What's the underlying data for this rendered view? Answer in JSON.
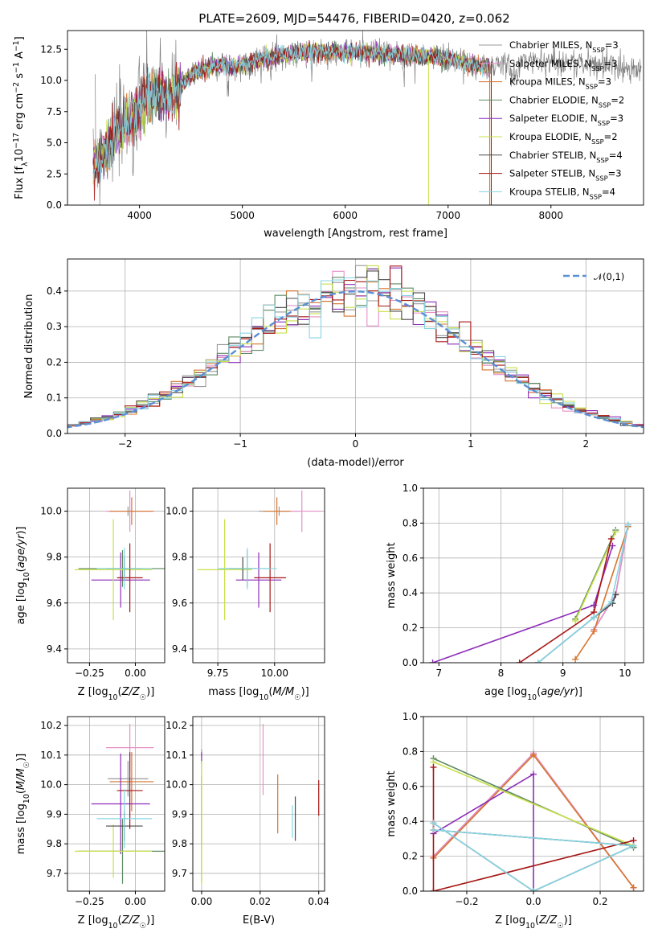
{
  "figure": {
    "title": "PLATE=2609, MJD=54476, FIBERID=0420, z=0.062"
  },
  "legend_entries": [
    {
      "name": "Chabrier MILES, N_SSP=3",
      "color": "#999999"
    },
    {
      "name": "Salpeter MILES, N_SSP=3",
      "color": "#e58fc6"
    },
    {
      "name": "Kroupa MILES, N_SSP=3",
      "color": "#d6742f"
    },
    {
      "name": "Chabrier ELODIE, N_SSP=2",
      "color": "#5e8b62"
    },
    {
      "name": "Salpeter ELODIE, N_SSP=3",
      "color": "#8e2eb8"
    },
    {
      "name": "Kroupa ELODIE, N_SSP=2",
      "color": "#c9e04a"
    },
    {
      "name": "Chabrier STELIB, N_SSP=4",
      "color": "#4a4a4a"
    },
    {
      "name": "Salpeter STELIB, N_SSP=3",
      "color": "#a71616"
    },
    {
      "name": "Kroupa STELIB, N_SSP=4",
      "color": "#86d5e3"
    }
  ],
  "chart_data": [
    {
      "id": "spectrum",
      "type": "line",
      "xlabel": "wavelength [Angstrom, rest frame]",
      "ylabel": "Flux [f_λ 10^-17 erg cm^-2 s^-1 A^-1]",
      "xlim": [
        3300,
        8900
      ],
      "ylim": [
        0,
        14
      ],
      "xticks": [
        4000,
        5000,
        6000,
        7000,
        8000
      ],
      "yticks": [
        0.0,
        2.5,
        5.0,
        7.5,
        10.0,
        12.5
      ],
      "ytick_labels": [
        "0.0",
        "2.5",
        "5.0",
        "7.5",
        "10.0",
        "12.5"
      ],
      "grid": false,
      "legend_position": "top-right",
      "continuum": {
        "x": [
          3600,
          3700,
          3800,
          3900,
          4000,
          4100,
          4200,
          4300,
          4400,
          4500,
          4600,
          4700,
          4800,
          4900,
          5000,
          5200,
          5400,
          5600,
          5800,
          6000,
          6200,
          6400,
          6600,
          6800,
          7000,
          7200,
          7400,
          7600,
          7800,
          8000,
          8200,
          8400,
          8600,
          8800
        ],
        "y": [
          3.5,
          4.8,
          6.0,
          6.8,
          8.0,
          8.8,
          9.0,
          8.6,
          9.5,
          10.4,
          10.8,
          11.1,
          11.2,
          11.0,
          11.2,
          11.8,
          12.1,
          12.2,
          12.3,
          12.2,
          12.3,
          12.1,
          12.0,
          11.9,
          11.8,
          11.3,
          11.0,
          11.5,
          11.6,
          11.5,
          11.4,
          11.3,
          11.2,
          11.0
        ]
      },
      "model_range": [
        3550,
        7400
      ]
    },
    {
      "id": "residuals",
      "type": "histogram",
      "xlabel": "(data-model)/error",
      "ylabel": "Normed distribution",
      "xlim": [
        -2.5,
        2.5
      ],
      "ylim": [
        0,
        0.49
      ],
      "xticks": [
        -2,
        -1,
        0,
        1,
        2
      ],
      "xtick_labels": [
        "−2",
        "−1",
        "0",
        "1",
        "2"
      ],
      "yticks": [
        0.0,
        0.1,
        0.2,
        0.3,
        0.4
      ],
      "ytick_labels": [
        "0.0",
        "0.1",
        "0.2",
        "0.3",
        "0.4"
      ],
      "grid": true,
      "bin_width": 0.1,
      "reference_curve": {
        "name": "𝒩(0,1)",
        "type": "gaussian",
        "mean": 0,
        "sigma": 1,
        "color": "#5b8fd6"
      },
      "legend_position": "top-right"
    },
    {
      "id": "age_vs_Z",
      "type": "errorbar",
      "xlabel": "Z [log10(Z/Z☉)]",
      "ylabel": "age  [log10(age/yr)]",
      "xlim": [
        -0.37,
        0.16
      ],
      "ylim": [
        9.34,
        10.1
      ],
      "xticks": [
        -0.25,
        0.0
      ],
      "xtick_labels": [
        "−0.25",
        "0.00"
      ],
      "yticks": [
        9.4,
        9.6,
        9.8,
        10.0
      ],
      "ytick_labels": [
        "9.4",
        "9.6",
        "9.8",
        "10.0"
      ],
      "grid": true,
      "points": [
        {
          "series": 0,
          "x": -0.04,
          "y": 10.0,
          "xerr": 0.11,
          "yerr": 0.02
        },
        {
          "series": 1,
          "x": -0.03,
          "y": 10.0,
          "xerr": 0.13,
          "yerr": 0.09
        },
        {
          "series": 2,
          "x": -0.02,
          "y": 10.0,
          "xerr": 0.12,
          "yerr": 0.06
        },
        {
          "series": 3,
          "x": -0.07,
          "y": 9.75,
          "xerr": 0.24,
          "yerr": 0.08
        },
        {
          "series": 4,
          "x": -0.08,
          "y": 9.7,
          "xerr": 0.16,
          "yerr": 0.12
        },
        {
          "series": 5,
          "x": -0.12,
          "y": 9.745,
          "xerr": 0.21,
          "yerr": 0.22
        },
        {
          "series": 6,
          "x": -0.06,
          "y": 9.75,
          "xerr": 0.1,
          "yerr": 0.05
        },
        {
          "series": 7,
          "x": -0.03,
          "y": 9.71,
          "xerr": 0.07,
          "yerr": 0.15
        },
        {
          "series": 8,
          "x": -0.06,
          "y": 9.75,
          "xerr": 0.15,
          "yerr": 0.09
        }
      ]
    },
    {
      "id": "age_vs_mass",
      "type": "errorbar",
      "xlabel": "mass [log10(M/M☉)]",
      "ylabel": "",
      "xlim": [
        9.64,
        10.22
      ],
      "ylim": [
        9.34,
        10.1
      ],
      "xticks": [
        9.75,
        10.0
      ],
      "xtick_labels": [
        "9.75",
        "10.00"
      ],
      "yticks": [
        9.4,
        9.6,
        9.8,
        10.0
      ],
      "ytick_labels": [
        "9.4",
        "9.6",
        "9.8",
        "10.0"
      ],
      "grid": true,
      "points": [
        {
          "series": 0,
          "x": 10.02,
          "y": 10.0,
          "xerr": 0.09,
          "yerr": 0.02
        },
        {
          "series": 1,
          "x": 10.12,
          "y": 10.0,
          "xerr": 0.09,
          "yerr": 0.09
        },
        {
          "series": 2,
          "x": 10.01,
          "y": 10.0,
          "xerr": 0.06,
          "yerr": 0.06
        },
        {
          "series": 3,
          "x": 9.88,
          "y": 9.75,
          "xerr": 0.11,
          "yerr": 0.08
        },
        {
          "series": 4,
          "x": 9.93,
          "y": 9.7,
          "xerr": 0.1,
          "yerr": 0.12
        },
        {
          "series": 5,
          "x": 9.78,
          "y": 9.745,
          "xerr": 0.12,
          "yerr": 0.22
        },
        {
          "series": 6,
          "x": 9.86,
          "y": 9.75,
          "xerr": 0.06,
          "yerr": 0.05
        },
        {
          "series": 7,
          "x": 9.98,
          "y": 9.71,
          "xerr": 0.07,
          "yerr": 0.15
        },
        {
          "series": 8,
          "x": 9.88,
          "y": 9.75,
          "xerr": 0.13,
          "yerr": 0.09
        }
      ]
    },
    {
      "id": "mw_vs_age",
      "type": "line",
      "xlabel": "age  [log10(age/yr)]",
      "ylabel": "mass weight",
      "xlim": [
        6.75,
        10.3
      ],
      "ylim": [
        0,
        1
      ],
      "xticks": [
        7,
        8,
        9,
        10
      ],
      "yticks": [
        0.0,
        0.2,
        0.4,
        0.6,
        0.8,
        1.0
      ],
      "ytick_labels": [
        "0.0",
        "0.2",
        "0.4",
        "0.6",
        "0.8",
        "1.0"
      ],
      "grid": true,
      "series": [
        {
          "series": 0,
          "x": [
            9.5,
            9.85,
            10.05
          ],
          "y": [
            0.19,
            0.39,
            0.79
          ]
        },
        {
          "series": 1,
          "x": [
            9.5,
            9.85,
            10.05
          ],
          "y": [
            0.19,
            0.39,
            0.79
          ]
        },
        {
          "series": 2,
          "x": [
            9.2,
            9.5,
            10.05
          ],
          "y": [
            0.02,
            0.18,
            0.78
          ]
        },
        {
          "series": 3,
          "x": [
            9.2,
            9.85
          ],
          "y": [
            0.25,
            0.76
          ]
        },
        {
          "series": 4,
          "x": [
            6.9,
            9.5,
            9.8
          ],
          "y": [
            0.0,
            0.33,
            0.67
          ]
        },
        {
          "series": 5,
          "x": [
            9.2,
            9.85
          ],
          "y": [
            0.24,
            0.75
          ]
        },
        {
          "series": 6,
          "x": [
            8.6,
            9.5,
            9.8,
            9.85
          ],
          "y": [
            0.0,
            0.26,
            0.34,
            0.39
          ]
        },
        {
          "series": 7,
          "x": [
            8.3,
            9.5,
            9.78
          ],
          "y": [
            0.0,
            0.29,
            0.71
          ]
        },
        {
          "series": 8,
          "x": [
            8.6,
            9.5,
            9.78,
            10.05
          ],
          "y": [
            0.0,
            0.26,
            0.35,
            0.79
          ]
        }
      ]
    },
    {
      "id": "mass_vs_Z",
      "type": "errorbar",
      "xlabel": "Z [log10(Z/Z☉)]",
      "ylabel": "mass [log10(M/M☉)]",
      "xlim": [
        -0.37,
        0.16
      ],
      "ylim": [
        9.64,
        10.23
      ],
      "xticks": [
        -0.25,
        0.0
      ],
      "xtick_labels": [
        "−0.25",
        "0.00"
      ],
      "yticks": [
        9.7,
        9.8,
        9.9,
        10.0,
        10.1,
        10.2
      ],
      "ytick_labels": [
        "9.7",
        "9.8",
        "9.9",
        "10.0",
        "10.1",
        "10.2"
      ],
      "grid": true,
      "points": [
        {
          "series": 0,
          "x": -0.04,
          "y": 10.02,
          "xerr": 0.11,
          "yerr": 0.06
        },
        {
          "series": 1,
          "x": -0.03,
          "y": 10.125,
          "xerr": 0.13,
          "yerr": 0.08
        },
        {
          "series": 2,
          "x": -0.02,
          "y": 10.01,
          "xerr": 0.12,
          "yerr": 0.1
        },
        {
          "series": 3,
          "x": -0.07,
          "y": 9.775,
          "xerr": 0.24,
          "yerr": 0.11
        },
        {
          "series": 4,
          "x": -0.08,
          "y": 9.935,
          "xerr": 0.16,
          "yerr": 0.17
        },
        {
          "series": 5,
          "x": -0.12,
          "y": 9.775,
          "xerr": 0.21,
          "yerr": 0.09
        },
        {
          "series": 6,
          "x": -0.06,
          "y": 9.86,
          "xerr": 0.1,
          "yerr": 0.05
        },
        {
          "series": 7,
          "x": -0.03,
          "y": 9.98,
          "xerr": 0.07,
          "yerr": 0.13
        },
        {
          "series": 8,
          "x": -0.06,
          "y": 9.885,
          "xerr": 0.15,
          "yerr": 0.1
        }
      ]
    },
    {
      "id": "mass_vs_EBV",
      "type": "errorbar",
      "xlabel": "E(B-V)",
      "ylabel": "",
      "xlim": [
        -0.003,
        0.042
      ],
      "ylim": [
        9.64,
        10.23
      ],
      "xticks": [
        0.0,
        0.02,
        0.04
      ],
      "xtick_labels": [
        "0.00",
        "0.02",
        "0.04"
      ],
      "yticks": [
        9.7,
        9.8,
        9.9,
        10.0,
        10.1,
        10.2
      ],
      "ytick_labels": [
        "9.7",
        "9.8",
        "9.9",
        "10.0",
        "10.1",
        "10.2"
      ],
      "grid": true,
      "points": [
        {
          "series": 0,
          "x": 0.0,
          "y": 9.96,
          "xerr": 0,
          "yerr": 0.16
        },
        {
          "series": 1,
          "x": 0.021,
          "y": 10.085,
          "xerr": 0,
          "yerr": 0.12
        },
        {
          "series": 2,
          "x": 0.026,
          "y": 9.935,
          "xerr": 0,
          "yerr": 0.1
        },
        {
          "series": 3,
          "x": 0.0,
          "y": 9.85,
          "xerr": 0,
          "yerr": 0.18
        },
        {
          "series": 4,
          "x": 0.0,
          "y": 10.09,
          "xerr": 0,
          "yerr": 0.02
        },
        {
          "series": 5,
          "x": 0.0,
          "y": 9.87,
          "xerr": 0,
          "yerr": 0.21
        },
        {
          "series": 6,
          "x": 0.032,
          "y": 9.885,
          "xerr": 0,
          "yerr": 0.075
        },
        {
          "series": 7,
          "x": 0.04,
          "y": 9.955,
          "xerr": 0,
          "yerr": 0.06
        },
        {
          "series": 8,
          "x": 0.031,
          "y": 9.875,
          "xerr": 0,
          "yerr": 0.055
        }
      ]
    },
    {
      "id": "mw_vs_Z",
      "type": "line",
      "xlabel": "Z [log10(Z/Z☉)]",
      "ylabel": "mass weight",
      "xlim": [
        -0.33,
        0.33
      ],
      "ylim": [
        0,
        1
      ],
      "xticks": [
        -0.2,
        0.0,
        0.2
      ],
      "xtick_labels": [
        "−0.2",
        "0.0",
        "0.2"
      ],
      "yticks": [
        0.0,
        0.2,
        0.4,
        0.6,
        0.8,
        1.0
      ],
      "ytick_labels": [
        "0.0",
        "0.2",
        "0.4",
        "0.6",
        "0.8",
        "1.0"
      ],
      "grid": true,
      "series": [
        {
          "series": 0,
          "x": [
            -0.3,
            0.0,
            0.3
          ],
          "y": [
            0.19,
            0.79,
            0.02
          ]
        },
        {
          "series": 1,
          "x": [
            -0.3,
            0.0,
            0.3
          ],
          "y": [
            0.2,
            0.79,
            0.02
          ]
        },
        {
          "series": 2,
          "x": [
            -0.3,
            0.0,
            0.3
          ],
          "y": [
            0.19,
            0.78,
            0.02
          ]
        },
        {
          "series": 3,
          "x": [
            -0.3,
            0.3
          ],
          "y": [
            0.76,
            0.25
          ]
        },
        {
          "series": 4,
          "x": [
            -0.3,
            0.0,
            0.0
          ],
          "y": [
            0.33,
            0.67,
            0.0
          ]
        },
        {
          "series": 5,
          "x": [
            -0.3,
            0.3
          ],
          "y": [
            0.74,
            0.26
          ]
        },
        {
          "series": 6,
          "x": [
            -0.3,
            0.0,
            0.3,
            -0.3
          ],
          "y": [
            0.39,
            0.0,
            0.26,
            0.35
          ]
        },
        {
          "series": 7,
          "x": [
            -0.3,
            -0.3,
            0.3
          ],
          "y": [
            0.71,
            0.0,
            0.29
          ]
        },
        {
          "series": 8,
          "x": [
            -0.3,
            0.0,
            0.3,
            -0.3
          ],
          "y": [
            0.39,
            0.0,
            0.26,
            0.35
          ]
        }
      ]
    }
  ]
}
